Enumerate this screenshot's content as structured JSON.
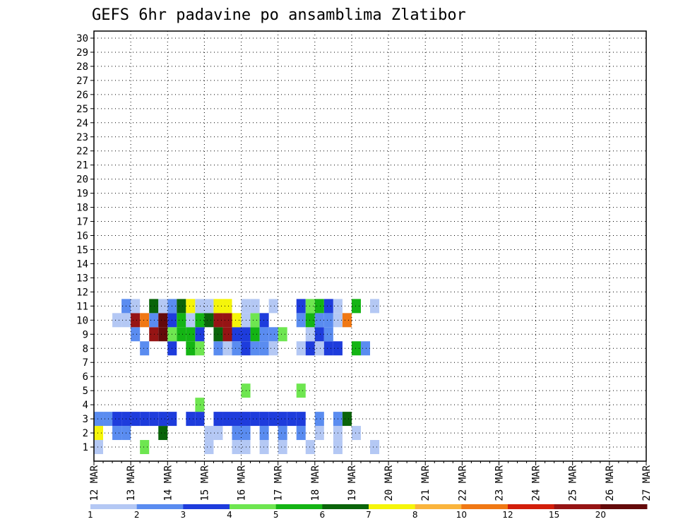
{
  "chart_data": {
    "type": "heatmap",
    "title": "GEFS 6hr padavine po ansamblima Zlatibor",
    "xlabel": "",
    "ylabel": "",
    "x_tick_labels": [
      "12 MAR",
      "13 MAR",
      "14 MAR",
      "15 MAR",
      "16 MAR",
      "17 MAR",
      "18 MAR",
      "19 MAR",
      "20 MAR",
      "21 MAR",
      "22 MAR",
      "23 MAR",
      "24 MAR",
      "25 MAR",
      "26 MAR",
      "27 MAR"
    ],
    "y_tick_labels": [
      "1",
      "2",
      "3",
      "4",
      "5",
      "6",
      "7",
      "8",
      "9",
      "10",
      "11",
      "12",
      "13",
      "14",
      "15",
      "16",
      "17",
      "18",
      "19",
      "20",
      "21",
      "22",
      "23",
      "24",
      "25",
      "26",
      "27",
      "28",
      "29",
      "30"
    ],
    "steps_per_day": 4,
    "colorbar": {
      "thresholds": [
        1,
        2,
        3,
        4,
        5,
        6,
        7,
        8,
        10,
        12,
        15,
        20
      ],
      "labels": [
        "1",
        "2",
        "3",
        "4",
        "5",
        "6",
        "7",
        "8",
        "10",
        "12",
        "15",
        "20"
      ],
      "colors": [
        "#b4c8f4",
        "#5a8cf0",
        "#1e3cdc",
        "#6ee650",
        "#14b414",
        "#0a640a",
        "#f5f50a",
        "#fab43c",
        "#f07814",
        "#d21e0a",
        "#961414",
        "#640a0a"
      ]
    },
    "cells": [
      [
        1,
        0,
        1
      ],
      [
        1,
        5,
        4
      ],
      [
        1,
        12,
        1
      ],
      [
        1,
        15,
        1
      ],
      [
        1,
        16,
        1
      ],
      [
        1,
        18,
        1
      ],
      [
        1,
        20,
        1
      ],
      [
        1,
        23,
        1
      ],
      [
        1,
        26,
        1
      ],
      [
        1,
        30,
        1
      ],
      [
        2,
        0,
        7
      ],
      [
        2,
        2,
        2
      ],
      [
        2,
        3,
        2
      ],
      [
        2,
        7,
        6
      ],
      [
        2,
        12,
        1
      ],
      [
        2,
        13,
        1
      ],
      [
        2,
        15,
        2
      ],
      [
        2,
        16,
        2
      ],
      [
        2,
        18,
        2
      ],
      [
        2,
        20,
        2
      ],
      [
        2,
        22,
        2
      ],
      [
        2,
        24,
        1
      ],
      [
        2,
        26,
        1
      ],
      [
        2,
        28,
        1
      ],
      [
        3,
        0,
        2
      ],
      [
        3,
        1,
        2
      ],
      [
        3,
        2,
        3
      ],
      [
        3,
        3,
        3
      ],
      [
        3,
        4,
        3
      ],
      [
        3,
        5,
        3
      ],
      [
        3,
        6,
        3
      ],
      [
        3,
        7,
        3
      ],
      [
        3,
        8,
        3
      ],
      [
        3,
        10,
        3
      ],
      [
        3,
        11,
        3
      ],
      [
        3,
        13,
        3
      ],
      [
        3,
        14,
        3
      ],
      [
        3,
        15,
        3
      ],
      [
        3,
        16,
        3
      ],
      [
        3,
        17,
        3
      ],
      [
        3,
        18,
        3
      ],
      [
        3,
        19,
        3
      ],
      [
        3,
        20,
        3
      ],
      [
        3,
        21,
        3
      ],
      [
        3,
        22,
        3
      ],
      [
        3,
        24,
        2
      ],
      [
        3,
        26,
        2
      ],
      [
        3,
        27,
        6
      ],
      [
        4,
        11,
        4
      ],
      [
        5,
        16,
        4
      ],
      [
        5,
        22,
        4
      ],
      [
        8,
        5,
        2
      ],
      [
        8,
        8,
        3
      ],
      [
        8,
        10,
        5
      ],
      [
        8,
        11,
        4
      ],
      [
        8,
        13,
        2
      ],
      [
        8,
        14,
        1
      ],
      [
        8,
        15,
        2
      ],
      [
        8,
        16,
        3
      ],
      [
        8,
        17,
        2
      ],
      [
        8,
        18,
        2
      ],
      [
        8,
        19,
        1
      ],
      [
        8,
        22,
        1
      ],
      [
        8,
        23,
        3
      ],
      [
        8,
        24,
        1
      ],
      [
        8,
        25,
        3
      ],
      [
        8,
        26,
        3
      ],
      [
        8,
        28,
        5
      ],
      [
        8,
        29,
        2
      ],
      [
        9,
        4,
        2
      ],
      [
        9,
        6,
        11
      ],
      [
        9,
        7,
        12
      ],
      [
        9,
        8,
        4
      ],
      [
        9,
        9,
        5
      ],
      [
        9,
        10,
        5
      ],
      [
        9,
        11,
        3
      ],
      [
        9,
        13,
        6
      ],
      [
        9,
        14,
        11
      ],
      [
        9,
        15,
        3
      ],
      [
        9,
        16,
        3
      ],
      [
        9,
        17,
        5
      ],
      [
        9,
        18,
        2
      ],
      [
        9,
        19,
        2
      ],
      [
        9,
        20,
        4
      ],
      [
        9,
        23,
        1
      ],
      [
        9,
        24,
        3
      ],
      [
        9,
        25,
        2
      ],
      [
        10,
        2,
        1
      ],
      [
        10,
        3,
        1
      ],
      [
        10,
        4,
        11
      ],
      [
        10,
        5,
        9
      ],
      [
        10,
        6,
        2
      ],
      [
        10,
        7,
        12
      ],
      [
        10,
        8,
        3
      ],
      [
        10,
        9,
        5
      ],
      [
        10,
        10,
        1
      ],
      [
        10,
        11,
        5
      ],
      [
        10,
        12,
        6
      ],
      [
        10,
        13,
        11
      ],
      [
        10,
        14,
        11
      ],
      [
        10,
        15,
        7
      ],
      [
        10,
        16,
        1
      ],
      [
        10,
        17,
        4
      ],
      [
        10,
        18,
        3
      ],
      [
        10,
        22,
        2
      ],
      [
        10,
        23,
        5
      ],
      [
        10,
        24,
        2
      ],
      [
        10,
        25,
        2
      ],
      [
        10,
        26,
        1
      ],
      [
        10,
        27,
        9
      ],
      [
        11,
        3,
        2
      ],
      [
        11,
        4,
        1
      ],
      [
        11,
        6,
        6
      ],
      [
        11,
        7,
        1
      ],
      [
        11,
        8,
        2
      ],
      [
        11,
        9,
        6
      ],
      [
        11,
        10,
        7
      ],
      [
        11,
        11,
        1
      ],
      [
        11,
        12,
        1
      ],
      [
        11,
        13,
        7
      ],
      [
        11,
        14,
        7
      ],
      [
        11,
        16,
        1
      ],
      [
        11,
        17,
        1
      ],
      [
        11,
        19,
        1
      ],
      [
        11,
        22,
        3
      ],
      [
        11,
        23,
        4
      ],
      [
        11,
        24,
        5
      ],
      [
        11,
        25,
        3
      ],
      [
        11,
        26,
        1
      ],
      [
        11,
        28,
        5
      ],
      [
        11,
        30,
        1
      ]
    ]
  },
  "colorbar_ticks": [
    "1",
    "2",
    "3",
    "4",
    "5",
    "6",
    "7",
    "8",
    "10",
    "12",
    "15",
    "20"
  ]
}
